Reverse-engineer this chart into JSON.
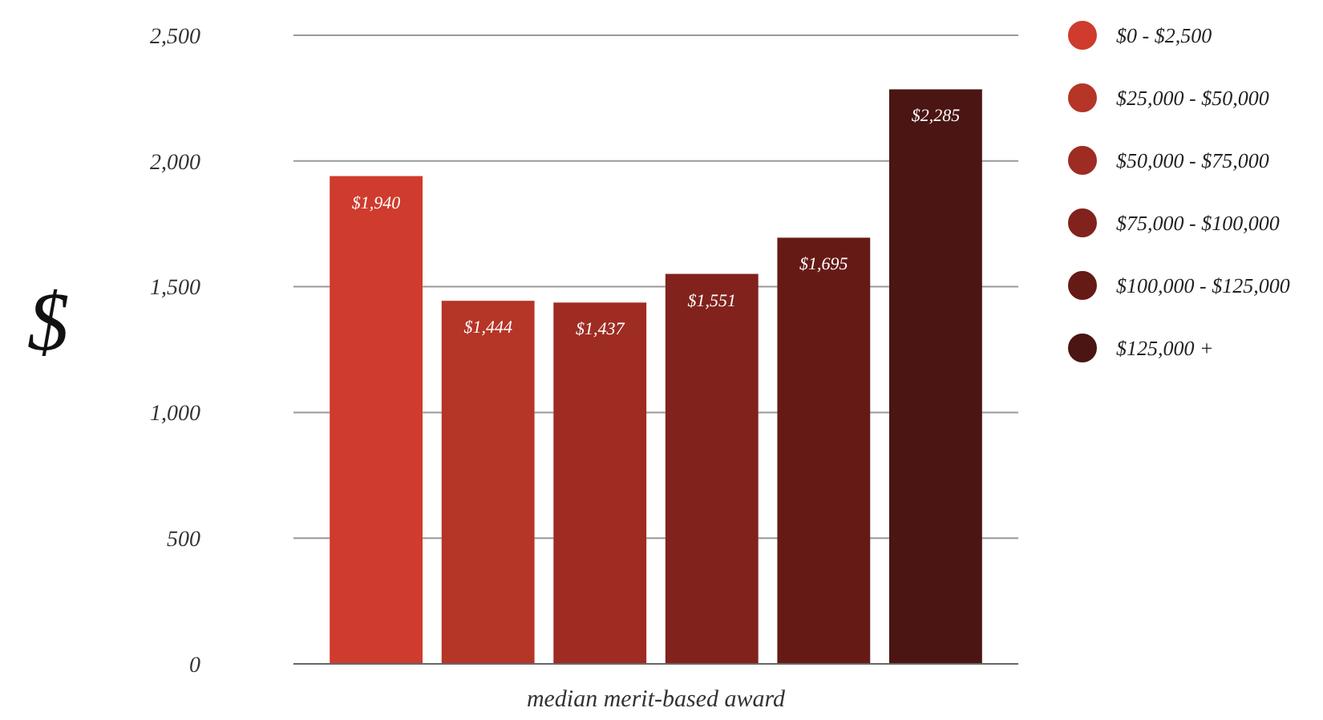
{
  "chart_data": {
    "type": "bar",
    "xlabel": "median merit-based award",
    "ylabel": "$",
    "categories": [
      null
    ],
    "series": [
      {
        "name": "$0 - $2,500",
        "color": "#cf3b2c",
        "values": [
          1940
        ],
        "value_labels": [
          "$1,940"
        ]
      },
      {
        "name": "$25,000 - $50,000",
        "color": "#b53527",
        "values": [
          1444
        ],
        "value_labels": [
          "$1,444"
        ]
      },
      {
        "name": "$50,000 - $75,000",
        "color": "#9e2c22",
        "values": [
          1437
        ],
        "value_labels": [
          "$1,437"
        ]
      },
      {
        "name": "$75,000 - $100,000",
        "color": "#82221c",
        "values": [
          1551
        ],
        "value_labels": [
          "$1,551"
        ]
      },
      {
        "name": "$100,000 - $125,000",
        "color": "#661a16",
        "values": [
          1695
        ],
        "value_labels": [
          "$1,695"
        ]
      },
      {
        "name": "$125,000 +",
        "color": "#4a1512",
        "values": [
          2285
        ],
        "value_labels": [
          "$2,285"
        ]
      }
    ],
    "ylim": [
      0,
      2500
    ],
    "yticks": [
      0,
      500,
      {
        "value": 1000,
        "label": "1,000"
      },
      {
        "value": 1500,
        "label": "1,500"
      },
      {
        "value": 2000,
        "label": "2,000"
      },
      {
        "value": 2500,
        "label": "2,500"
      }
    ],
    "grid": "y",
    "legend": "right"
  }
}
